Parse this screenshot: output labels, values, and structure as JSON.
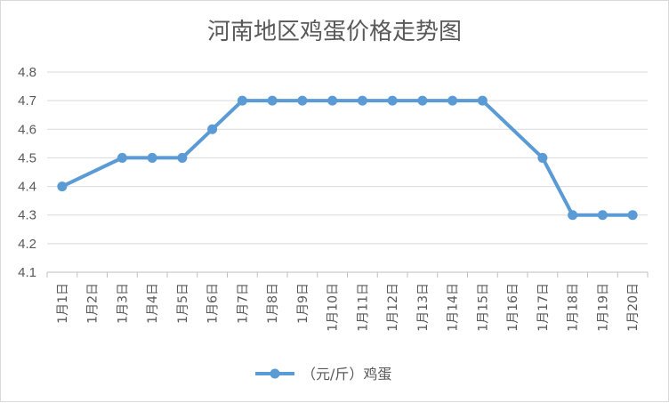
{
  "chart_data": {
    "type": "line",
    "title": "河南地区鸡蛋价格走势图",
    "categories": [
      "1月1日",
      "1月2日",
      "1月3日",
      "1月4日",
      "1月5日",
      "1月6日",
      "1月7日",
      "1月8日",
      "1月9日",
      "1月10日",
      "1月11日",
      "1月12日",
      "1月13日",
      "1月14日",
      "1月15日",
      "1月16日",
      "1月17日",
      "1月18日",
      "1月19日",
      "1月20日"
    ],
    "series": [
      {
        "name": "（元/斤）鸡蛋",
        "color": "#5b9bd5",
        "values": [
          4.4,
          null,
          4.5,
          4.5,
          4.5,
          4.6,
          4.7,
          4.7,
          4.7,
          4.7,
          4.7,
          4.7,
          4.7,
          4.7,
          4.7,
          null,
          4.5,
          4.3,
          4.3,
          4.3
        ]
      }
    ],
    "ylim": [
      4.1,
      4.8
    ],
    "yticks": [
      "4.1",
      "4.2",
      "4.3",
      "4.4",
      "4.5",
      "4.6",
      "4.7",
      "4.8"
    ],
    "grid": true,
    "legend": "bottom"
  }
}
